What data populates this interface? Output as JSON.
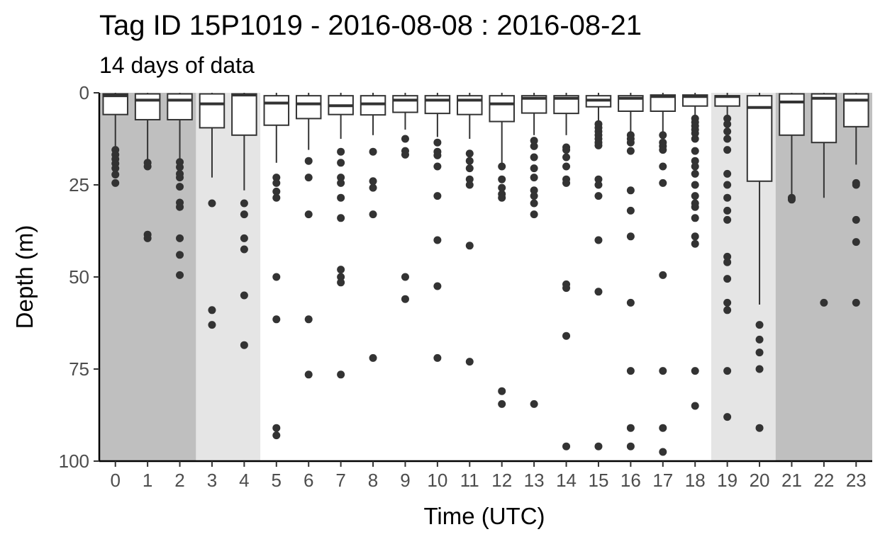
{
  "chart_data": {
    "type": "boxplot",
    "title": "Tag ID 15P1019 - 2016-08-08 : 2016-08-21",
    "subtitle": "14 days of data",
    "xlabel": "Time (UTC)",
    "ylabel": "Depth (m)",
    "ylim": [
      0,
      100
    ],
    "y_reversed": true,
    "yticks": [
      0,
      25,
      50,
      75,
      100
    ],
    "categories": [
      "0",
      "1",
      "2",
      "3",
      "4",
      "5",
      "6",
      "7",
      "8",
      "9",
      "10",
      "11",
      "12",
      "13",
      "14",
      "15",
      "16",
      "17",
      "18",
      "19",
      "20",
      "21",
      "22",
      "23"
    ],
    "background_shading": [
      {
        "from_hour": 0,
        "to_hour": 3,
        "kind": "night",
        "color": "#bfbfbf"
      },
      {
        "from_hour": 3,
        "to_hour": 4,
        "kind": "twilight",
        "color": "#e5e5e5"
      },
      {
        "from_hour": 19,
        "to_hour": 20,
        "kind": "twilight",
        "color": "#e5e5e5"
      },
      {
        "from_hour": 21,
        "to_hour": 23,
        "kind": "night",
        "color": "#bfbfbf"
      }
    ],
    "boxes": [
      {
        "hour": 0,
        "q1": 0.3,
        "median": 0.8,
        "q3": 5.9,
        "whisker_low": 0,
        "whisker_high": 14.5,
        "outliers": [
          15.5,
          16.8,
          18,
          19.2,
          20.5,
          22.2,
          24.5
        ]
      },
      {
        "hour": 1,
        "q1": 0.3,
        "median": 2,
        "q3": 7.3,
        "whisker_low": 0,
        "whisker_high": 18,
        "outliers": [
          19,
          20,
          38.5,
          39.5
        ]
      },
      {
        "hour": 2,
        "q1": 0.3,
        "median": 2,
        "q3": 7.3,
        "whisker_low": 0,
        "whisker_high": 18,
        "outliers": [
          18.8,
          20.2,
          22,
          23,
          25.5,
          29.8,
          31,
          39.5,
          44,
          49.5
        ]
      },
      {
        "hour": 3,
        "q1": 0.3,
        "median": 3,
        "q3": 9.5,
        "whisker_low": 0,
        "whisker_high": 23,
        "outliers": [
          30,
          59,
          63
        ]
      },
      {
        "hour": 4,
        "q1": 0.3,
        "median": 0.6,
        "q3": 11.5,
        "whisker_low": 0,
        "whisker_high": 26.5,
        "outliers": [
          30,
          33,
          39.5,
          42.5,
          55,
          68.5
        ]
      },
      {
        "hour": 5,
        "q1": 0.8,
        "median": 2.8,
        "q3": 8.8,
        "whisker_low": 0,
        "whisker_high": 19,
        "outliers": [
          23,
          24.5,
          26.8,
          28.5,
          50,
          61.5,
          91,
          93
        ]
      },
      {
        "hour": 6,
        "q1": 0.8,
        "median": 3,
        "q3": 7,
        "whisker_low": 0,
        "whisker_high": 15.5,
        "outliers": [
          18.5,
          23,
          33,
          61.5,
          76.5
        ]
      },
      {
        "hour": 7,
        "q1": 0.8,
        "median": 3.5,
        "q3": 5.9,
        "whisker_low": 0,
        "whisker_high": 12.5,
        "outliers": [
          16,
          19,
          23,
          24.5,
          28.5,
          34,
          48,
          50,
          51.5,
          76.5
        ]
      },
      {
        "hour": 8,
        "q1": 0.8,
        "median": 3,
        "q3": 6,
        "whisker_low": 0,
        "whisker_high": 11.5,
        "outliers": [
          16,
          24,
          25.8,
          33,
          72
        ]
      },
      {
        "hour": 9,
        "q1": 0.8,
        "median": 2,
        "q3": 5.3,
        "whisker_low": 0,
        "whisker_high": 10,
        "outliers": [
          12.5,
          15.8,
          16.8,
          50,
          56
        ]
      },
      {
        "hour": 10,
        "q1": 0.8,
        "median": 2,
        "q3": 5.6,
        "whisker_low": 0,
        "whisker_high": 12,
        "outliers": [
          13.5,
          16,
          17,
          20,
          28,
          40,
          52.5,
          72
        ]
      },
      {
        "hour": 11,
        "q1": 0.8,
        "median": 2,
        "q3": 5.9,
        "whisker_low": 0,
        "whisker_high": 12.5,
        "outliers": [
          16.5,
          18.5,
          20.5,
          23.5,
          25,
          41.5,
          73
        ]
      },
      {
        "hour": 12,
        "q1": 0.8,
        "median": 3,
        "q3": 7.8,
        "whisker_low": 0,
        "whisker_high": 19,
        "outliers": [
          20,
          23.5,
          25.8,
          27.5,
          28.5,
          81,
          84.5
        ]
      },
      {
        "hour": 13,
        "q1": 0.8,
        "median": 1.5,
        "q3": 5.5,
        "whisker_low": 0,
        "whisker_high": 11.5,
        "outliers": [
          13,
          14.5,
          17.5,
          20.5,
          23,
          26.5,
          28,
          30,
          33,
          84.5
        ]
      },
      {
        "hour": 14,
        "q1": 0.8,
        "median": 1.5,
        "q3": 5.6,
        "whisker_low": 0,
        "whisker_high": 11.5,
        "outliers": [
          14.8,
          15.5,
          17.5,
          20,
          23.5,
          24.5,
          52,
          53,
          66,
          96
        ]
      },
      {
        "hour": 15,
        "q1": 0.8,
        "median": 2,
        "q3": 3.8,
        "whisker_low": 0,
        "whisker_high": 7.5,
        "outliers": [
          8.5,
          9.5,
          10.5,
          11.5,
          12.5,
          13.5,
          14.3,
          23.5,
          25,
          28,
          40,
          54,
          96
        ]
      },
      {
        "hour": 16,
        "q1": 0.8,
        "median": 1.5,
        "q3": 5,
        "whisker_low": 0,
        "whisker_high": 10.5,
        "outliers": [
          11.5,
          12.5,
          13.5,
          15.8,
          26.5,
          32,
          39,
          57,
          75.5,
          91,
          96
        ]
      },
      {
        "hour": 17,
        "q1": 0.6,
        "median": 1,
        "q3": 5,
        "whisker_low": 0,
        "whisker_high": 11,
        "outliers": [
          11.5,
          13.5,
          14.5,
          15.5,
          20,
          24.5,
          49.5,
          75.5,
          91,
          97.5
        ]
      },
      {
        "hour": 18,
        "q1": 0.6,
        "median": 1,
        "q3": 3.6,
        "whisker_low": 0,
        "whisker_high": 6.5,
        "outliers": [
          7,
          8,
          9,
          10,
          11,
          12.5,
          15.8,
          18.5,
          20,
          22,
          25,
          28,
          30,
          31,
          34,
          39,
          41,
          75.5,
          85
        ]
      },
      {
        "hour": 19,
        "q1": 0.8,
        "median": 1,
        "q3": 3.6,
        "whisker_low": 0,
        "whisker_high": 6,
        "outliers": [
          7,
          8.5,
          10.5,
          12.5,
          15.5,
          22,
          25,
          28.5,
          32,
          34.5,
          44.5,
          46,
          50.5,
          57,
          59,
          75.5,
          88
        ]
      },
      {
        "hour": 20,
        "q1": 0.8,
        "median": 4,
        "q3": 24,
        "whisker_low": 0,
        "whisker_high": 57.5,
        "outliers": [
          63,
          67,
          70.5,
          75,
          91
        ]
      },
      {
        "hour": 21,
        "q1": 0.3,
        "median": 2.5,
        "q3": 11.5,
        "whisker_low": 0,
        "whisker_high": 28,
        "outliers": [
          28.5,
          29
        ]
      },
      {
        "hour": 22,
        "q1": 0.3,
        "median": 1.5,
        "q3": 13.5,
        "whisker_low": 0,
        "whisker_high": 28.5,
        "outliers": [
          57
        ]
      },
      {
        "hour": 23,
        "q1": 0.3,
        "median": 2,
        "q3": 9.2,
        "whisker_low": 0,
        "whisker_high": 19.5,
        "outliers": [
          24.5,
          25,
          34.5,
          40.5,
          57
        ]
      }
    ]
  }
}
